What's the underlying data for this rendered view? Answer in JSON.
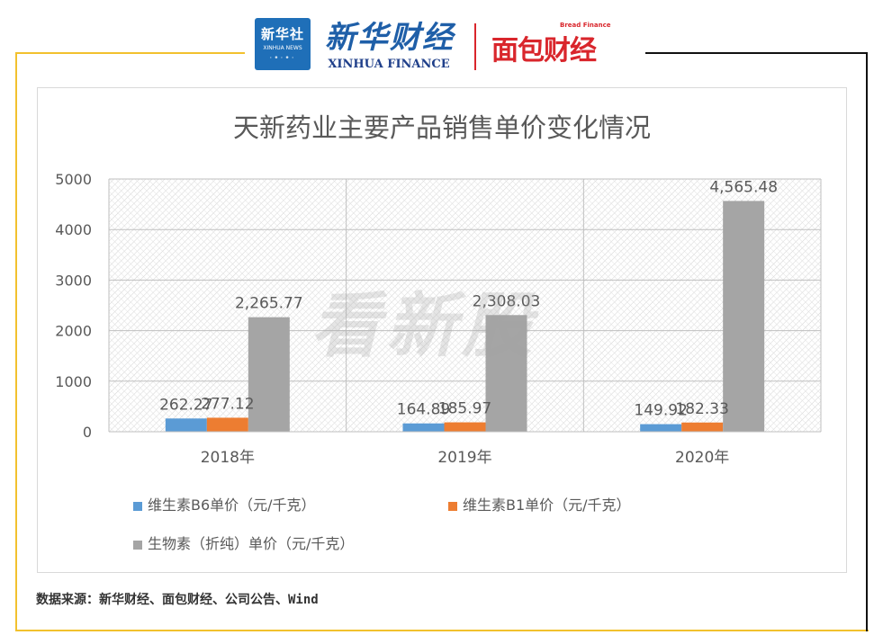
{
  "header": {
    "xinhua_box_cn": "新华社",
    "xinhua_box_en": "XINHUA NEWS",
    "xinhua_finance_cn": "新华财经",
    "xinhua_finance_en": "XINHUA FINANCE",
    "bread_finance_en": "Bread Finance",
    "bread_finance_cn": "面包财经"
  },
  "watermark": "看新股",
  "source": "数据来源：新华财经、面包财经、公司公告、Wind",
  "colors": {
    "b6": "#5b9bd5",
    "b1": "#ed7d31",
    "biotin": "#a5a5a5",
    "frame_yellow": "#f2c12e",
    "frame_black": "#111111"
  },
  "chart_data": {
    "type": "bar",
    "title": "天新药业主要产品销售单价变化情况",
    "categories": [
      "2018年",
      "2019年",
      "2020年"
    ],
    "series": [
      {
        "name": "维生素B6单价（元/千克）",
        "values": [
          262.27,
          164.89,
          149.92
        ],
        "labels": [
          "262.27",
          "164.89",
          "149.92"
        ]
      },
      {
        "name": "维生素B1单价（元/千克）",
        "values": [
          277.12,
          185.97,
          182.33
        ],
        "labels": [
          "277.12",
          "185.97",
          "182.33"
        ]
      },
      {
        "name": "生物素（折纯）单价（元/千克）",
        "values": [
          2265.77,
          2308.03,
          4565.48
        ],
        "labels": [
          "2,265.77",
          "2,308.03",
          "4,565.48"
        ]
      }
    ],
    "yticks": [
      "0",
      "1000",
      "2000",
      "3000",
      "4000",
      "5000"
    ],
    "ylim": [
      0,
      5000
    ],
    "grid": true,
    "legend": "bottom"
  }
}
